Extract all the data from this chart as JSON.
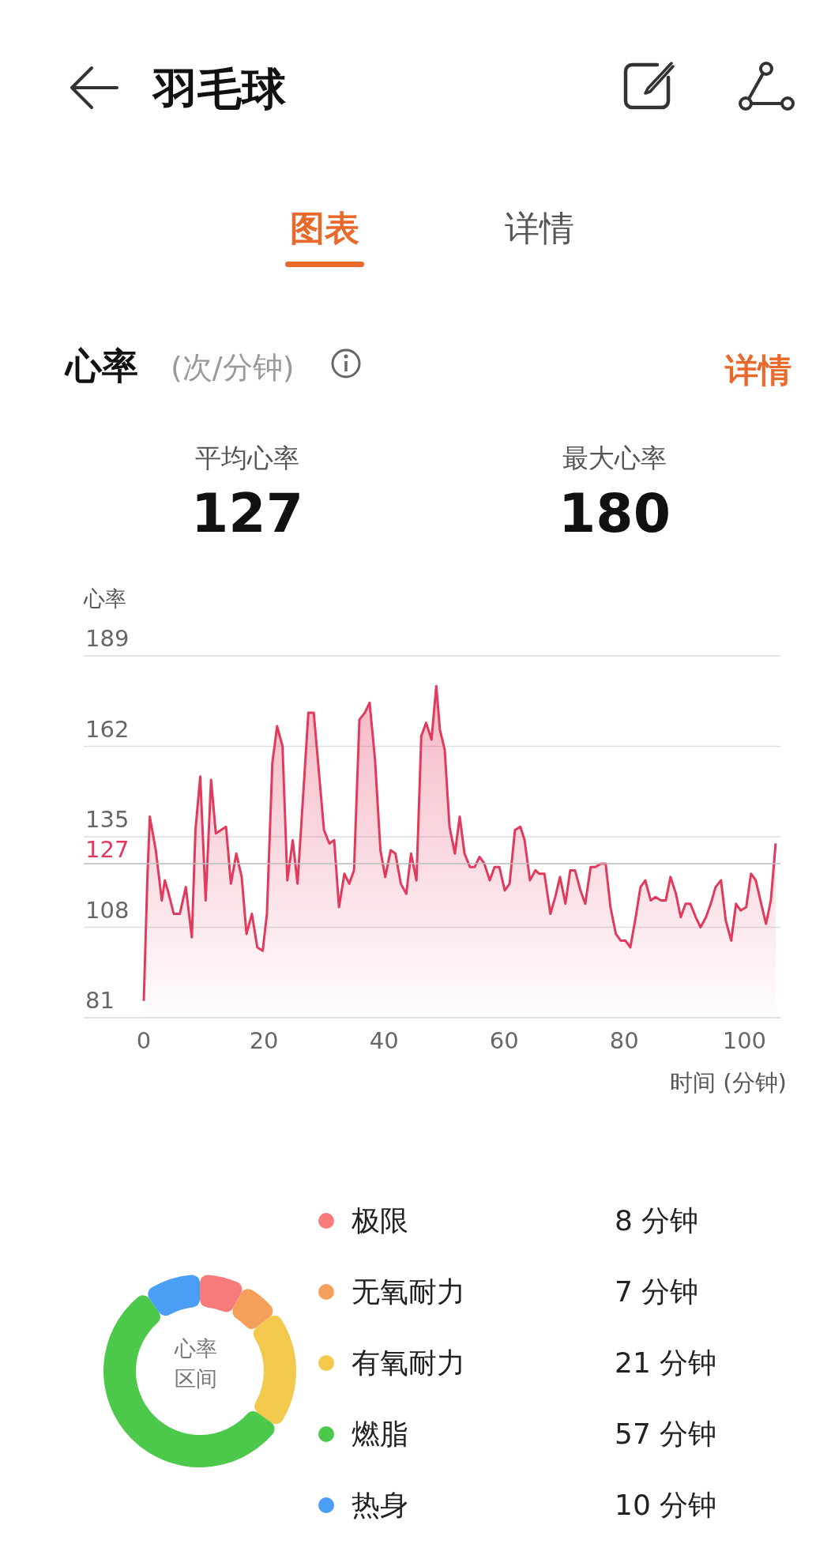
{
  "chart_data": [
    {
      "type": "area",
      "title": "心率",
      "subtitle": "(次/分钟)",
      "ylabel": "心率",
      "xlabel": "时间 (分钟)",
      "annotations": [
        "羽毛球",
        "图表",
        "详情",
        "详情",
        "平均心率",
        "127",
        "最大心率",
        "180"
      ],
      "x": [
        0,
        0.6,
        1,
        2,
        3,
        3.5,
        4,
        5,
        6,
        7,
        8,
        8.6,
        9.4,
        10.3,
        11.2,
        12,
        13.7,
        14.5,
        15.4,
        16.3,
        17.1,
        18,
        18.9,
        19.8,
        20.5,
        21.4,
        22.2,
        23.1,
        23.9,
        24.8,
        25.6,
        27.4,
        28.3,
        30,
        30.9,
        31.7,
        32.5,
        33.4,
        34.2,
        35,
        35.9,
        36.8,
        37.6,
        38.5,
        39.4,
        40.2,
        41.1,
        41.9,
        42.8,
        43.7,
        44.5,
        45.4,
        46.2,
        47,
        47.9,
        48.7,
        49.3,
        50.1,
        50.9,
        51.8,
        52.6,
        53.4,
        54.3,
        55.1,
        55.9,
        56.7,
        57.6,
        58.4,
        59.2,
        60.1,
        60.9,
        61.8,
        62.7,
        63.4,
        64.3,
        65.2,
        65.8,
        66.7,
        67.7,
        68.5,
        69.3,
        70.2,
        71,
        71.8,
        72.7,
        73.5,
        74.4,
        75.2,
        76.1,
        76.9,
        77.7,
        78.6,
        79.4,
        80.2,
        81,
        81.9,
        82.7,
        83.5,
        84.4,
        85.2,
        86.1,
        86.9,
        87.7,
        88.6,
        89.4,
        90.2,
        91,
        91.9,
        92.7,
        93.6,
        94.4,
        95.2,
        96.1,
        96.9,
        97.8,
        98.6,
        99.4,
        100.3,
        101.1,
        101.9,
        102.8,
        103.6,
        104.4,
        105.2
      ],
      "series": [
        {
          "color": "#e23a5c",
          "values": [
            86,
            123,
            141,
            131,
            116,
            122,
            119,
            112,
            112,
            120,
            105,
            137,
            153,
            116,
            152,
            136,
            138,
            121,
            130,
            123,
            106,
            112,
            102,
            101,
            112,
            157,
            168,
            162,
            122,
            134,
            121,
            172,
            172,
            137,
            133,
            134,
            114,
            124,
            121,
            125,
            170,
            172,
            175,
            158,
            131,
            123,
            131,
            130,
            121,
            118,
            130,
            122,
            165,
            169,
            164,
            180,
            167,
            161,
            138,
            130,
            141,
            130,
            126,
            126,
            129,
            127,
            122,
            126,
            126,
            119,
            121,
            137,
            138,
            134,
            122,
            125,
            124,
            124,
            112,
            117,
            123,
            115,
            125,
            125,
            119,
            115,
            126,
            126,
            127,
            127,
            114,
            106,
            104,
            104,
            102,
            111,
            120,
            122,
            116,
            117,
            116,
            116,
            123,
            118,
            111,
            115,
            115,
            111,
            108,
            111,
            115,
            120,
            122,
            110,
            104,
            115,
            113,
            114,
            124,
            122,
            115,
            109,
            116,
            133
          ]
        }
      ],
      "xlim": [
        -10,
        106
      ],
      "xticks": [
        0,
        20,
        40,
        60,
        80,
        100
      ],
      "ylim": [
        81,
        189
      ],
      "yticks": [
        81,
        108,
        135,
        162,
        189
      ],
      "grid": "y",
      "marker": "none",
      "line_style": "solid",
      "ref_lines": [
        {
          "axis": "y",
          "value": 127,
          "label": "127",
          "color": "#bbbbbb"
        }
      ]
    },
    {
      "type": "donut",
      "title": "心率区间",
      "legend": "right",
      "categories": [
        "极限",
        "无氧耐力",
        "有氧耐力",
        "燃脂",
        "热身"
      ],
      "values": [
        8,
        7,
        21,
        57,
        10
      ],
      "colors": [
        "#f77b7b",
        "#f5a05a",
        "#f2c94c",
        "#4cc84a",
        "#4a9ef5"
      ],
      "value_labels": [
        "8 分钟",
        "7 分钟",
        "21 分钟",
        "57 分钟",
        "10 分钟"
      ]
    }
  ]
}
